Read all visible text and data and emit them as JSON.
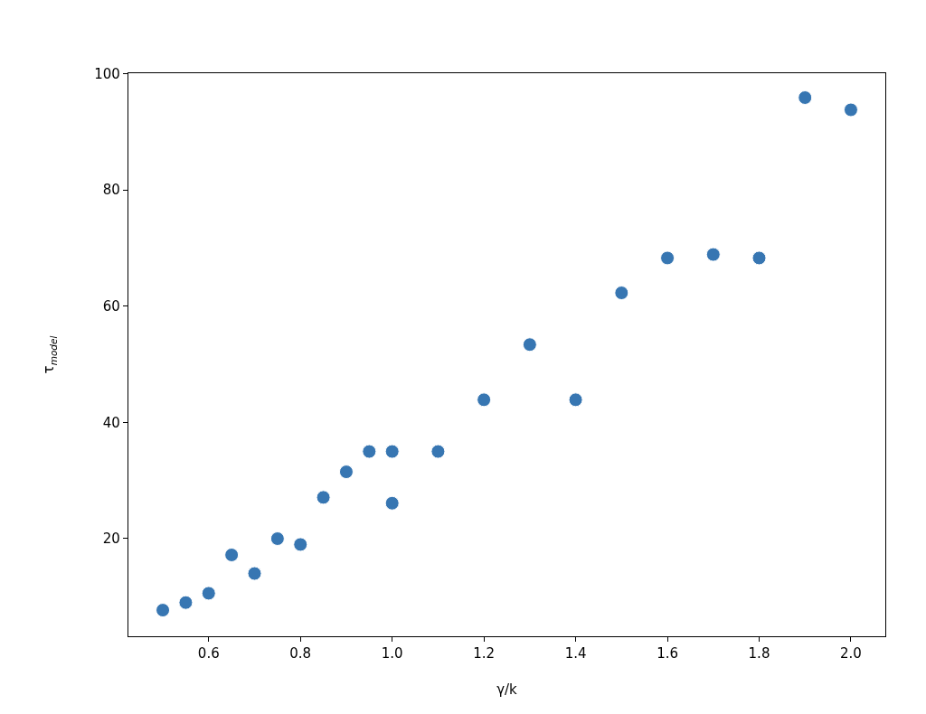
{
  "chart_data": {
    "type": "scatter",
    "xlabel": "γ/k",
    "ylabel": "τ$_{model}$",
    "x": [
      0.5,
      0.55,
      0.6,
      0.65,
      0.7,
      0.75,
      0.8,
      0.85,
      0.9,
      0.95,
      1.0,
      1.0,
      1.1,
      1.2,
      1.3,
      1.4,
      1.5,
      1.6,
      1.7,
      1.8,
      1.9,
      2.0
    ],
    "values": [
      7.7,
      9.0,
      10.6,
      17.2,
      14.0,
      20.0,
      19.0,
      27.1,
      31.5,
      35.0,
      35.0,
      26.1,
      35.0,
      43.9,
      53.4,
      43.9,
      62.3,
      68.3,
      68.9,
      68.3,
      95.9,
      93.8
    ],
    "color": "#3776b2",
    "marker": "circle",
    "grid": false,
    "xlim": [
      0.425,
      2.075
    ],
    "ylim": [
      3.2,
      100.1
    ],
    "xticks": [
      0.6,
      0.8,
      {
        "value": 1.0,
        "label": "1.0"
      },
      1.2,
      1.4,
      1.6,
      1.8,
      {
        "value": 2.0,
        "label": "2.0"
      }
    ],
    "yticks": [
      20,
      40,
      60,
      80,
      100
    ]
  }
}
